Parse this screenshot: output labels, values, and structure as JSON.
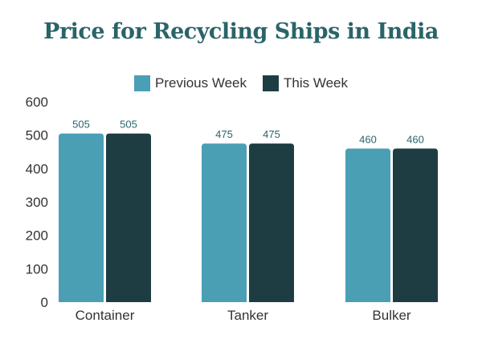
{
  "chart_data": {
    "type": "bar",
    "title": "Price for Recycling Ships in India",
    "categories": [
      "Container",
      "Tanker",
      "Bulker"
    ],
    "series": [
      {
        "name": "Previous Week",
        "values": [
          505,
          475,
          460
        ],
        "color": "#4a9fb5"
      },
      {
        "name": "This Week",
        "values": [
          505,
          475,
          460
        ],
        "color": "#1e3d43"
      }
    ],
    "ylim": [
      0,
      600
    ],
    "yticks": [
      "0",
      "100",
      "200",
      "300",
      "400",
      "500",
      "600"
    ],
    "data_labels": [
      [
        "505",
        "475",
        "460"
      ],
      [
        "505",
        "475",
        "460"
      ]
    ],
    "grid": false,
    "legend_position": "top-center",
    "title_color": "#2a6469"
  }
}
